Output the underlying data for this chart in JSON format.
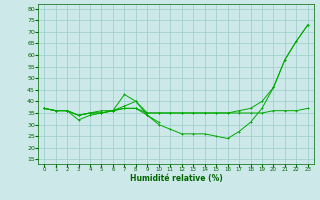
{
  "xlabel": "Humidité relative (%)",
  "background_color": "#cce8e8",
  "grid_color": "#99cccc",
  "line_color": "#00aa00",
  "x_ticks": [
    0,
    1,
    2,
    3,
    4,
    5,
    6,
    7,
    8,
    9,
    10,
    11,
    12,
    13,
    14,
    15,
    16,
    17,
    18,
    19,
    20,
    21,
    22,
    23
  ],
  "y_ticks": [
    15,
    20,
    25,
    30,
    35,
    40,
    45,
    50,
    55,
    60,
    65,
    70,
    75,
    80
  ],
  "ylim": [
    13,
    82
  ],
  "xlim": [
    -0.5,
    23.5
  ],
  "line1_x": [
    0,
    1,
    2,
    3,
    4,
    5,
    6,
    7,
    8,
    9,
    10,
    11,
    12,
    13,
    14,
    15,
    16,
    17,
    18,
    19,
    20,
    21,
    22,
    23
  ],
  "line1_y": [
    37,
    36,
    36,
    34,
    35,
    35,
    36,
    43,
    40,
    34,
    30,
    28,
    26,
    26,
    26,
    25,
    24,
    27,
    31,
    37,
    46,
    58,
    66,
    73
  ],
  "line2_x": [
    0,
    1,
    2,
    3,
    4,
    5,
    6,
    7,
    8,
    9,
    10,
    11,
    12,
    13,
    14,
    15,
    16,
    17,
    18,
    19,
    20,
    21,
    22,
    23
  ],
  "line2_y": [
    37,
    36,
    36,
    34,
    35,
    36,
    36,
    37,
    37,
    35,
    35,
    35,
    35,
    35,
    35,
    35,
    35,
    35,
    35,
    35,
    36,
    36,
    36,
    37
  ],
  "line3_x": [
    0,
    1,
    2,
    3,
    4,
    5,
    6,
    7,
    8,
    9,
    10,
    11,
    12,
    13,
    14,
    15,
    16,
    17,
    18,
    19,
    20,
    21,
    22,
    23
  ],
  "line3_y": [
    37,
    36,
    36,
    32,
    34,
    35,
    36,
    38,
    40,
    35,
    35,
    35,
    35,
    35,
    35,
    35,
    35,
    36,
    37,
    40,
    46,
    58,
    66,
    73
  ],
  "line4_x": [
    0,
    1,
    2,
    3,
    4,
    5,
    6,
    7,
    8,
    9,
    10
  ],
  "line4_y": [
    37,
    36,
    36,
    34,
    35,
    35,
    36,
    37,
    37,
    34,
    31
  ]
}
